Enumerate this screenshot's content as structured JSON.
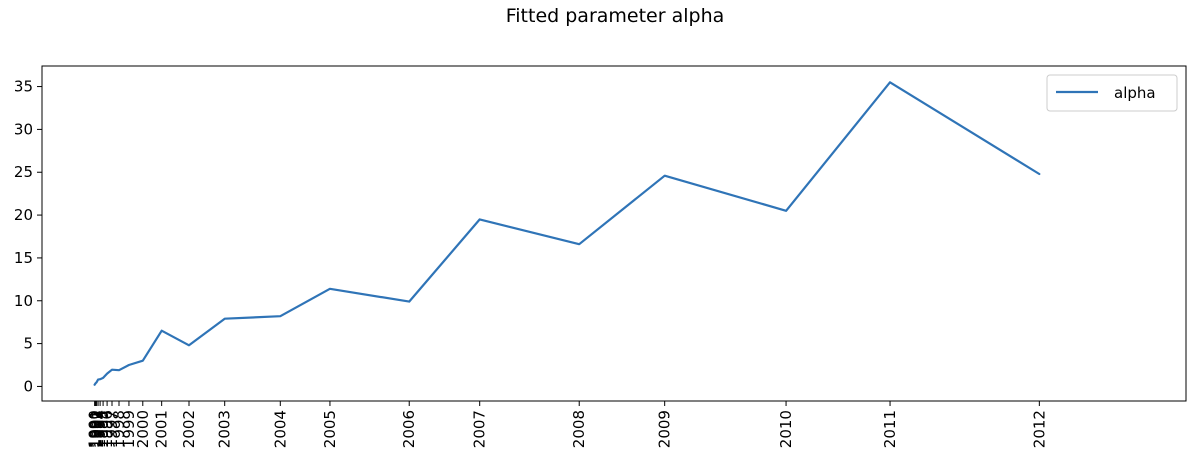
{
  "chart_data": {
    "type": "line",
    "title": "Fitted parameter alpha",
    "xlabel": "",
    "ylabel": "",
    "x": [
      "1990",
      "1991",
      "1992",
      "1993",
      "1994",
      "1995",
      "1996",
      "1997",
      "1998",
      "1999",
      "2000",
      "2001",
      "2002",
      "2003",
      "2004",
      "2005",
      "2006",
      "2007",
      "2008",
      "2009",
      "2010",
      "2011",
      "2012"
    ],
    "series": [
      {
        "name": "alpha",
        "color": "#2f74b7",
        "values": [
          0.2,
          0.35,
          0.5,
          0.8,
          0.85,
          1.0,
          1.5,
          1.95,
          1.9,
          2.5,
          3.0,
          6.5,
          4.8,
          7.9,
          8.2,
          11.4,
          9.9,
          19.5,
          16.6,
          24.6,
          20.5,
          35.5,
          24.8
        ]
      }
    ],
    "ylim": [
      -1.7,
      37.4
    ],
    "yticks": [
      0,
      5,
      10,
      15,
      20,
      25,
      30,
      35
    ],
    "grid": false,
    "legend": "top-right"
  }
}
